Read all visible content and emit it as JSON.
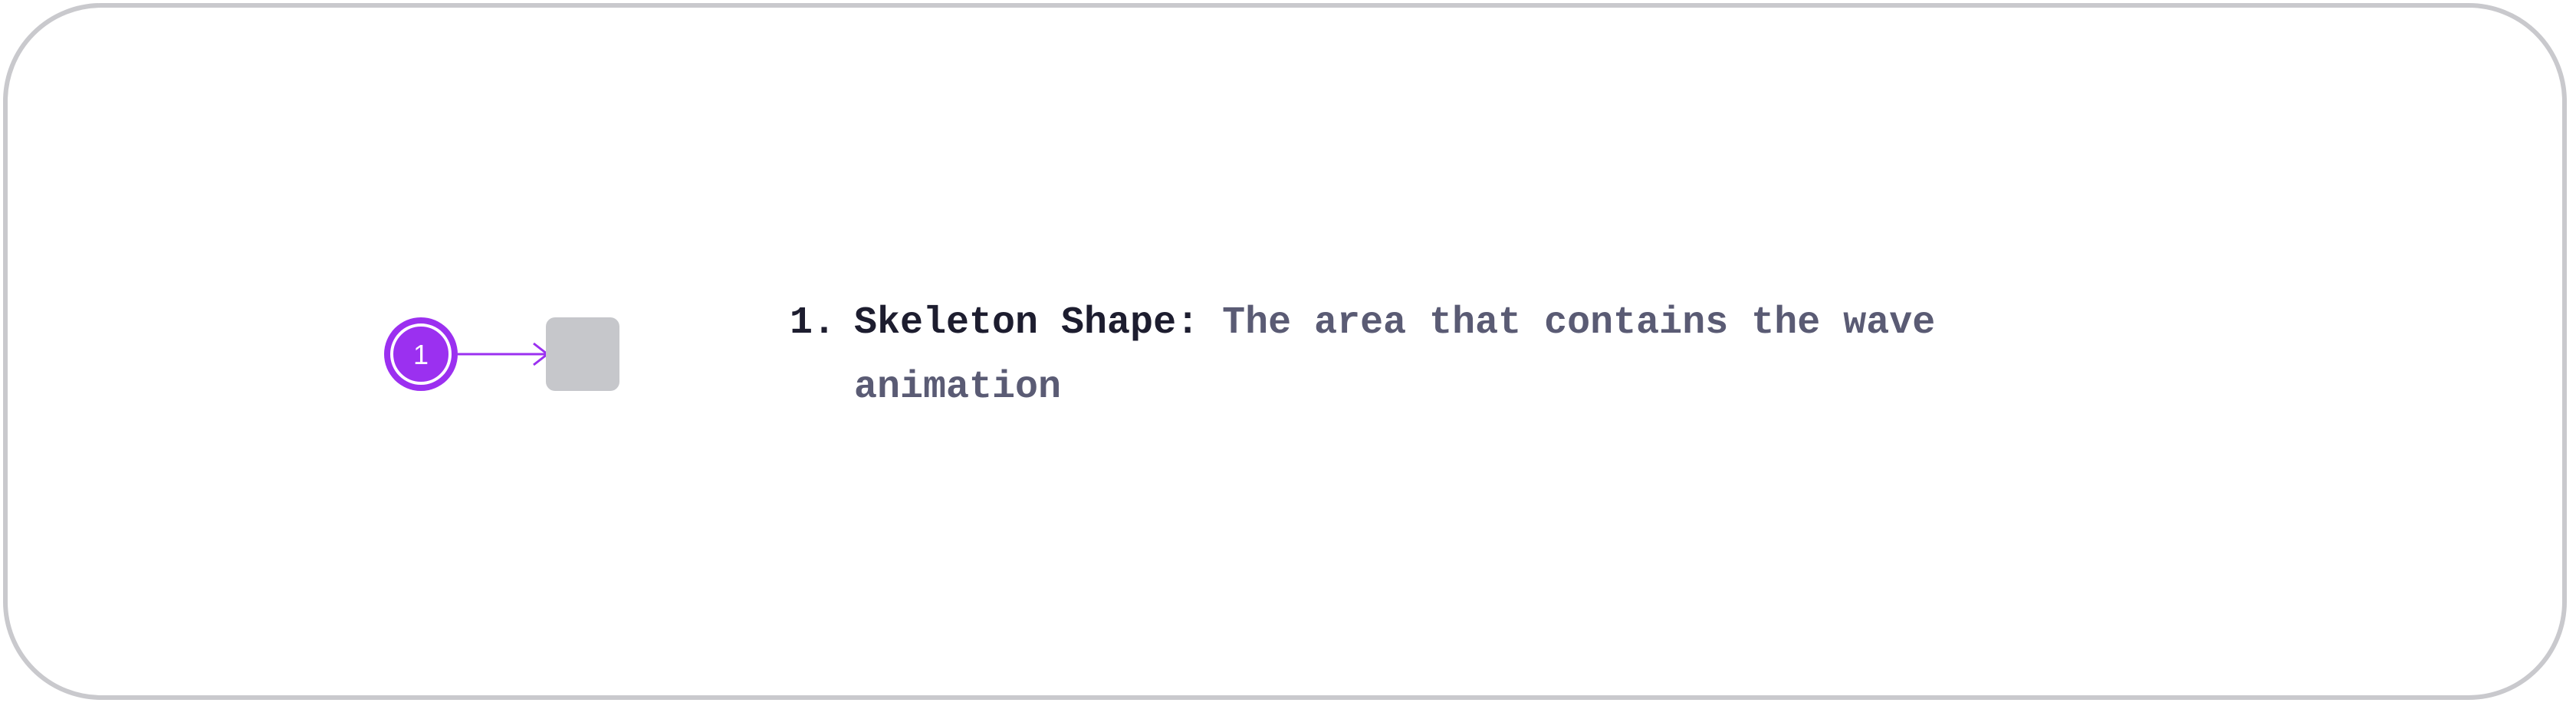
{
  "diagram": {
    "marker": {
      "number": "1",
      "color": "#9b30f0"
    },
    "skeleton_shape_color": "#c6c7cb"
  },
  "legend": {
    "items": [
      {
        "index": "1.",
        "term": "Skeleton Shape:",
        "description": "The area that contains the wave animation"
      }
    ]
  },
  "colors": {
    "frame_border": "#c9c9cd",
    "term_text": "#1d1d2f",
    "description_text": "#5a5b74"
  }
}
